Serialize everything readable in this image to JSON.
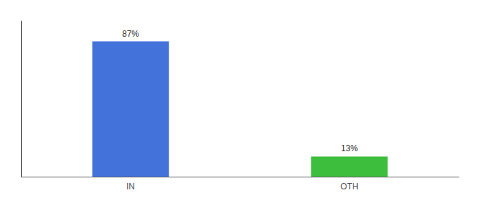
{
  "chart_data": {
    "type": "bar",
    "categories": [
      "IN",
      "OTH"
    ],
    "values": [
      87,
      13
    ],
    "value_labels": [
      "87%",
      "13%"
    ],
    "colors": [
      "#4472db",
      "#3dbf3d"
    ],
    "ylim": [
      0,
      100
    ],
    "data_labels": true,
    "tick_labels": "x",
    "grid": false
  }
}
